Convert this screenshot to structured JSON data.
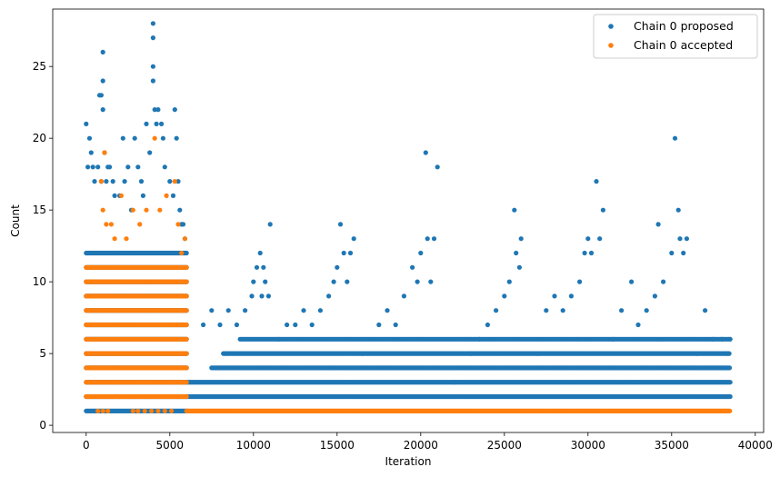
{
  "chart_data": {
    "type": "scatter",
    "title": "",
    "xlabel": "Iteration",
    "ylabel": "Count",
    "xlim": [
      -2000,
      40500
    ],
    "ylim": [
      -0.5,
      29
    ],
    "xticks": [
      0,
      5000,
      10000,
      15000,
      20000,
      25000,
      30000,
      35000,
      40000
    ],
    "yticks": [
      0,
      5,
      10,
      15,
      20,
      25
    ],
    "grid": false,
    "legend_position": "top-right",
    "colors": {
      "proposed": "#1f77b4",
      "accepted": "#ff7f0e"
    },
    "series": [
      {
        "name": "Chain 0 proposed",
        "key": "proposed",
        "bands": [
          {
            "from": 0,
            "to": 6000,
            "min": 1,
            "max": 12,
            "step": 50
          },
          {
            "from": 6000,
            "to": 38500,
            "min": 2,
            "max": 3,
            "step": 50
          },
          {
            "from": 7500,
            "to": 38500,
            "min": 4,
            "max": 4,
            "step": 60
          },
          {
            "from": 8200,
            "to": 38500,
            "min": 5,
            "max": 5,
            "step": 70
          },
          {
            "from": 9200,
            "to": 38500,
            "min": 6,
            "max": 6,
            "step": 80
          }
        ],
        "points": [
          [
            0,
            21
          ],
          [
            200,
            20
          ],
          [
            300,
            19
          ],
          [
            100,
            18
          ],
          [
            400,
            18
          ],
          [
            500,
            17
          ],
          [
            700,
            18
          ],
          [
            900,
            17
          ],
          [
            1000,
            26
          ],
          [
            800,
            23
          ],
          [
            900,
            23
          ],
          [
            1000,
            24
          ],
          [
            1000,
            22
          ],
          [
            1100,
            19
          ],
          [
            1200,
            17
          ],
          [
            1300,
            18
          ],
          [
            1400,
            18
          ],
          [
            1600,
            17
          ],
          [
            1700,
            16
          ],
          [
            2000,
            16
          ],
          [
            2200,
            20
          ],
          [
            2300,
            17
          ],
          [
            2500,
            18
          ],
          [
            2700,
            15
          ],
          [
            2900,
            20
          ],
          [
            3100,
            18
          ],
          [
            3300,
            17
          ],
          [
            3400,
            16
          ],
          [
            3600,
            21
          ],
          [
            3800,
            19
          ],
          [
            4000,
            28
          ],
          [
            4000,
            27
          ],
          [
            4000,
            25
          ],
          [
            4000,
            24
          ],
          [
            4100,
            22
          ],
          [
            4200,
            21
          ],
          [
            4300,
            22
          ],
          [
            4500,
            21
          ],
          [
            4600,
            20
          ],
          [
            4700,
            18
          ],
          [
            5000,
            17
          ],
          [
            5200,
            16
          ],
          [
            5300,
            22
          ],
          [
            5400,
            20
          ],
          [
            5500,
            17
          ],
          [
            5600,
            15
          ],
          [
            5700,
            14
          ],
          [
            5800,
            14
          ],
          [
            5900,
            13
          ],
          [
            7000,
            7
          ],
          [
            7500,
            8
          ],
          [
            8000,
            7
          ],
          [
            8500,
            8
          ],
          [
            9000,
            7
          ],
          [
            9500,
            8
          ],
          [
            9900,
            9
          ],
          [
            10000,
            10
          ],
          [
            10200,
            11
          ],
          [
            10400,
            12
          ],
          [
            10500,
            9
          ],
          [
            10600,
            11
          ],
          [
            10700,
            10
          ],
          [
            10900,
            9
          ],
          [
            11000,
            14
          ],
          [
            11500,
            6
          ],
          [
            12000,
            7
          ],
          [
            12500,
            7
          ],
          [
            13000,
            8
          ],
          [
            13500,
            7
          ],
          [
            14000,
            8
          ],
          [
            14500,
            9
          ],
          [
            14800,
            10
          ],
          [
            15000,
            11
          ],
          [
            15200,
            14
          ],
          [
            15400,
            12
          ],
          [
            15600,
            10
          ],
          [
            15800,
            12
          ],
          [
            16000,
            13
          ],
          [
            16500,
            5
          ],
          [
            17500,
            7
          ],
          [
            18000,
            8
          ],
          [
            18500,
            7
          ],
          [
            19000,
            9
          ],
          [
            19500,
            11
          ],
          [
            19800,
            10
          ],
          [
            20000,
            12
          ],
          [
            20300,
            19
          ],
          [
            20400,
            13
          ],
          [
            20600,
            10
          ],
          [
            20800,
            13
          ],
          [
            21000,
            18
          ],
          [
            22000,
            3
          ],
          [
            23000,
            5
          ],
          [
            23500,
            6
          ],
          [
            24000,
            7
          ],
          [
            24500,
            8
          ],
          [
            25000,
            9
          ],
          [
            25300,
            10
          ],
          [
            25600,
            15
          ],
          [
            25700,
            12
          ],
          [
            25900,
            11
          ],
          [
            26000,
            13
          ],
          [
            27000,
            5
          ],
          [
            27500,
            8
          ],
          [
            28000,
            9
          ],
          [
            28500,
            8
          ],
          [
            29000,
            9
          ],
          [
            29500,
            10
          ],
          [
            29800,
            12
          ],
          [
            30000,
            13
          ],
          [
            30200,
            12
          ],
          [
            30500,
            17
          ],
          [
            30700,
            13
          ],
          [
            30900,
            15
          ],
          [
            31500,
            6
          ],
          [
            32000,
            8
          ],
          [
            32600,
            10
          ],
          [
            33000,
            7
          ],
          [
            33500,
            8
          ],
          [
            34000,
            9
          ],
          [
            34200,
            14
          ],
          [
            34500,
            10
          ],
          [
            35000,
            12
          ],
          [
            35200,
            20
          ],
          [
            35400,
            15
          ],
          [
            35500,
            13
          ],
          [
            35700,
            12
          ],
          [
            35900,
            13
          ],
          [
            36500,
            5
          ],
          [
            37000,
            8
          ],
          [
            37500,
            6
          ],
          [
            38000,
            6
          ],
          [
            38300,
            5
          ],
          [
            38500,
            6
          ]
        ]
      },
      {
        "name": "Chain 0 accepted",
        "key": "accepted",
        "bands": [
          {
            "from": 0,
            "to": 6000,
            "min": 2,
            "max": 11,
            "step": 60
          },
          {
            "from": 6000,
            "to": 38500,
            "min": 1,
            "max": 1,
            "step": 40
          }
        ],
        "points": [
          [
            900,
            17
          ],
          [
            1000,
            15
          ],
          [
            1100,
            19
          ],
          [
            1200,
            14
          ],
          [
            1500,
            14
          ],
          [
            1700,
            13
          ],
          [
            2100,
            16
          ],
          [
            2400,
            13
          ],
          [
            2800,
            15
          ],
          [
            3200,
            14
          ],
          [
            3600,
            15
          ],
          [
            4100,
            20
          ],
          [
            4400,
            15
          ],
          [
            4800,
            16
          ],
          [
            5300,
            17
          ],
          [
            5500,
            14
          ],
          [
            5700,
            12
          ],
          [
            5900,
            13
          ],
          [
            700,
            1
          ],
          [
            1000,
            1
          ],
          [
            1300,
            1
          ],
          [
            2800,
            1
          ],
          [
            3100,
            1
          ],
          [
            3500,
            1
          ],
          [
            3900,
            1
          ],
          [
            4300,
            1
          ],
          [
            4700,
            1
          ],
          [
            5100,
            1
          ]
        ]
      }
    ]
  },
  "legend": {
    "items": [
      {
        "label": "Chain 0 proposed",
        "color": "#1f77b4"
      },
      {
        "label": "Chain 0 accepted",
        "color": "#ff7f0e"
      }
    ]
  }
}
